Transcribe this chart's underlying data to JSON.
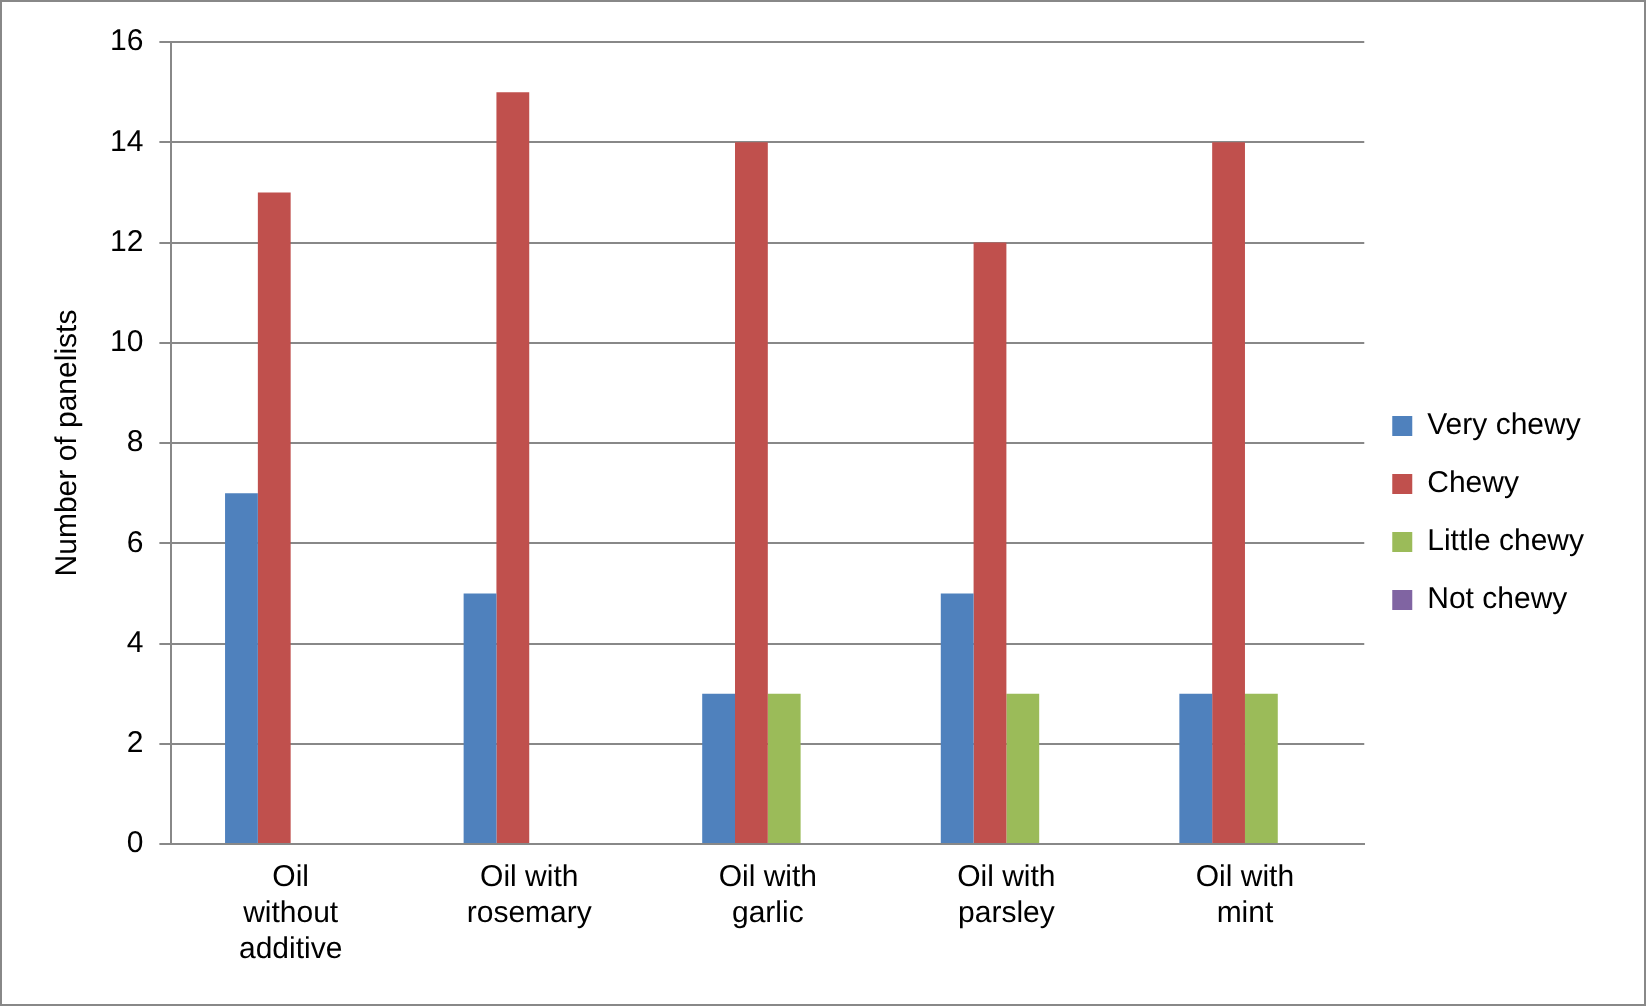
{
  "chart_data": {
    "type": "bar",
    "ylabel": "Number of panelists",
    "categories": [
      "Oil without additive",
      "Oil with rosemary",
      "Oil with garlic",
      "Oil with parsley",
      "Oil with mint"
    ],
    "series": [
      {
        "name": "Very chewy",
        "color": "#4f81bd",
        "values": [
          7,
          5,
          3,
          5,
          3
        ]
      },
      {
        "name": "Chewy",
        "color": "#c0504d",
        "values": [
          13,
          15,
          14,
          12,
          14
        ]
      },
      {
        "name": "Little chewy",
        "color": "#9bbb59",
        "values": [
          0,
          0,
          3,
          3,
          3
        ]
      },
      {
        "name": "Not chewy",
        "color": "#8064a2",
        "values": [
          0,
          0,
          0,
          0,
          0
        ]
      }
    ],
    "ylim": [
      0,
      16
    ],
    "yticks": [
      0,
      2,
      4,
      6,
      8,
      10,
      12,
      14,
      16
    ],
    "grid": "y",
    "legend": "right"
  }
}
